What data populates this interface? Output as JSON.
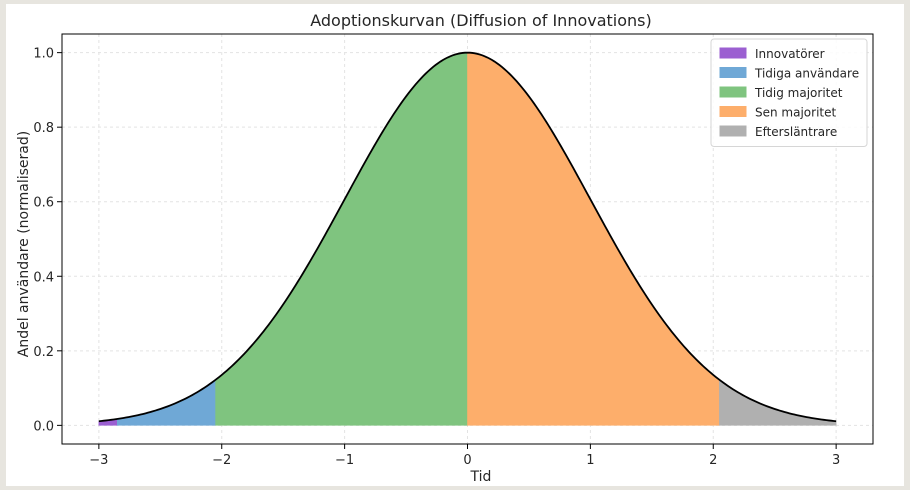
{
  "chart_data": {
    "type": "area",
    "title": "Adoptionskurvan (Diffusion of Innovations)",
    "xlabel": "Tid",
    "ylabel": "Andel användare (normaliserad)",
    "xlim": [
      -3.3,
      3.3
    ],
    "ylim": [
      -0.05,
      1.05
    ],
    "x_ticks": [
      -3,
      -2,
      -1,
      0,
      1,
      2,
      3
    ],
    "x_tick_labels": [
      "−3",
      "−2",
      "−1",
      "0",
      "1",
      "2",
      "3"
    ],
    "y_ticks": [
      0.0,
      0.2,
      0.4,
      0.6,
      0.8,
      1.0
    ],
    "y_tick_labels": [
      "0.0",
      "0.2",
      "0.4",
      "0.6",
      "0.8",
      "1.0"
    ],
    "grid": true,
    "legend_position": "top-right",
    "curve": "exp(-x^2/2)",
    "x_range": [
      -3,
      3
    ],
    "series": [
      {
        "name": "Innovatörer",
        "x_start": -3.0,
        "x_end": -2.85,
        "color": "#9b5fd1"
      },
      {
        "name": "Tidiga användare",
        "x_start": -2.85,
        "x_end": -2.05,
        "color": "#6fa8d6"
      },
      {
        "name": "Tidig majoritet",
        "x_start": -2.05,
        "x_end": 0.0,
        "color": "#7fc47f"
      },
      {
        "name": "Sen majoritet",
        "x_start": 0.0,
        "x_end": 2.05,
        "color": "#fdae6b"
      },
      {
        "name": "Eftersläntrare",
        "x_start": 2.05,
        "x_end": 3.0,
        "color": "#b0b0b0"
      }
    ],
    "line_color": "#000000"
  }
}
